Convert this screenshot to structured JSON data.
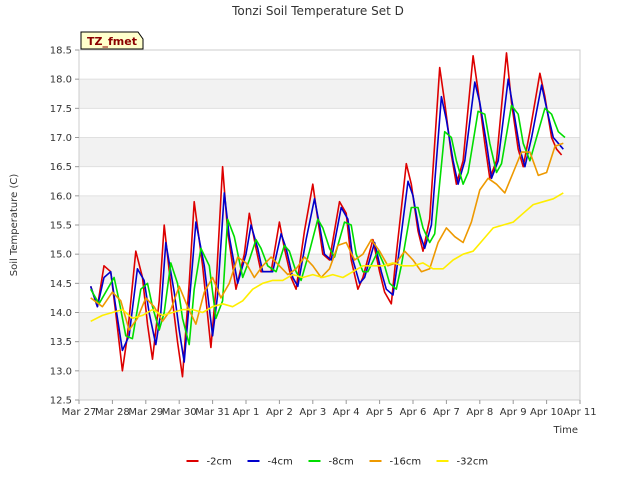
{
  "chart_data": {
    "type": "line",
    "title": "Tonzi Soil Temperature Set D",
    "xlabel": "Time",
    "ylabel": "Soil Temperature (C)",
    "badge": "TZ_fmet",
    "xlim": [
      0,
      15
    ],
    "ylim": [
      12.5,
      18.5
    ],
    "x_tick_values": [
      0,
      1,
      2,
      3,
      4,
      5,
      6,
      7,
      8,
      9,
      10,
      11,
      12,
      13,
      14,
      15
    ],
    "x_tick_labels": [
      "Mar 27",
      "Mar 28",
      "Mar 29",
      "Mar 30",
      "Mar 31",
      "Apr 1",
      "Apr 2",
      "Apr 3",
      "Apr 4",
      "Apr 5",
      "Apr 6",
      "Apr 7",
      "Apr 8",
      "Apr 9",
      "Apr 10",
      "Apr 11"
    ],
    "y_ticks": [
      12.5,
      13.0,
      13.5,
      14.0,
      14.5,
      15.0,
      15.5,
      16.0,
      16.5,
      17.0,
      17.5,
      18.0,
      18.5
    ],
    "y_tick_labels": [
      "12.5",
      "13.0",
      "13.5",
      "14.0",
      "14.5",
      "15.0",
      "15.5",
      "16.0",
      "16.5",
      "17.0",
      "17.5",
      "18.0",
      "18.5"
    ],
    "grid": "horizontal bands",
    "legend_position": "bottom",
    "series": [
      {
        "name": "-2cm",
        "color": "#dd0000",
        "x": [
          0.35,
          0.55,
          0.75,
          0.95,
          1.1,
          1.3,
          1.45,
          1.7,
          1.9,
          2.05,
          2.2,
          2.4,
          2.55,
          2.8,
          2.95,
          3.1,
          3.3,
          3.45,
          3.7,
          3.95,
          4.1,
          4.3,
          4.45,
          4.7,
          4.95,
          5.1,
          5.3,
          5.45,
          5.75,
          6.0,
          6.15,
          6.35,
          6.5,
          6.75,
          7.0,
          7.15,
          7.3,
          7.5,
          7.8,
          8.0,
          8.15,
          8.35,
          8.5,
          8.8,
          9.0,
          9.15,
          9.35,
          9.5,
          9.8,
          9.95,
          10.15,
          10.3,
          10.5,
          10.8,
          10.95,
          11.15,
          11.3,
          11.5,
          11.8,
          11.95,
          12.15,
          12.3,
          12.5,
          12.8,
          12.95,
          13.15,
          13.3,
          13.5,
          13.8,
          13.95,
          14.15,
          14.3,
          14.45
        ],
        "y": [
          14.45,
          14.1,
          14.8,
          14.7,
          14.0,
          13.0,
          13.6,
          15.05,
          14.6,
          13.8,
          13.2,
          14.2,
          15.5,
          14.2,
          13.5,
          12.9,
          14.5,
          15.9,
          14.8,
          13.4,
          14.4,
          16.5,
          15.4,
          14.4,
          15.0,
          15.7,
          15.1,
          14.7,
          14.7,
          15.55,
          15.1,
          14.6,
          14.4,
          15.4,
          16.2,
          15.6,
          15.0,
          14.9,
          15.9,
          15.7,
          14.9,
          14.4,
          14.6,
          15.25,
          14.7,
          14.35,
          14.15,
          15.0,
          16.55,
          16.2,
          15.4,
          15.05,
          15.6,
          18.2,
          17.6,
          16.7,
          16.2,
          16.6,
          18.4,
          17.8,
          16.9,
          16.3,
          16.6,
          18.45,
          17.6,
          16.8,
          16.5,
          17.1,
          18.1,
          17.7,
          17.0,
          16.8,
          16.7
        ]
      },
      {
        "name": "-4cm",
        "color": "#0000cc",
        "x": [
          0.35,
          0.55,
          0.75,
          0.95,
          1.1,
          1.3,
          1.5,
          1.75,
          1.95,
          2.1,
          2.3,
          2.45,
          2.6,
          2.85,
          3.0,
          3.15,
          3.35,
          3.5,
          3.75,
          4.0,
          4.15,
          4.35,
          4.5,
          4.75,
          5.0,
          5.15,
          5.35,
          5.5,
          5.8,
          6.05,
          6.2,
          6.4,
          6.55,
          6.8,
          7.05,
          7.2,
          7.35,
          7.55,
          7.85,
          8.05,
          8.2,
          8.4,
          8.55,
          8.85,
          9.05,
          9.2,
          9.4,
          9.55,
          9.85,
          10.0,
          10.2,
          10.35,
          10.55,
          10.85,
          11.0,
          11.2,
          11.35,
          11.55,
          11.85,
          12.0,
          12.2,
          12.35,
          12.55,
          12.85,
          13.0,
          13.2,
          13.35,
          13.55,
          13.85,
          14.0,
          14.2,
          14.35,
          14.5
        ],
        "y": [
          14.45,
          14.1,
          14.6,
          14.7,
          14.1,
          13.35,
          13.6,
          14.75,
          14.55,
          14.0,
          13.45,
          14.0,
          15.2,
          14.35,
          13.7,
          13.15,
          14.5,
          15.55,
          14.8,
          13.6,
          14.3,
          16.05,
          15.3,
          14.5,
          15.0,
          15.5,
          15.1,
          14.7,
          14.7,
          15.35,
          15.1,
          14.6,
          14.45,
          15.25,
          15.95,
          15.5,
          15.0,
          14.9,
          15.8,
          15.6,
          14.9,
          14.5,
          14.6,
          15.2,
          14.7,
          14.4,
          14.3,
          14.9,
          16.25,
          16.0,
          15.35,
          15.1,
          15.5,
          17.7,
          17.3,
          16.6,
          16.2,
          16.6,
          17.95,
          17.6,
          16.9,
          16.3,
          16.6,
          18.0,
          17.5,
          16.8,
          16.5,
          17.0,
          17.9,
          17.5,
          17.0,
          16.9,
          16.8
        ]
      },
      {
        "name": "-8cm",
        "color": "#00dd00",
        "x": [
          0.35,
          0.6,
          0.85,
          1.05,
          1.2,
          1.4,
          1.6,
          1.85,
          2.05,
          2.2,
          2.4,
          2.55,
          2.75,
          2.95,
          3.1,
          3.3,
          3.45,
          3.65,
          3.9,
          4.1,
          4.3,
          4.45,
          4.65,
          4.9,
          5.1,
          5.3,
          5.45,
          5.65,
          5.9,
          6.15,
          6.3,
          6.5,
          6.65,
          6.9,
          7.15,
          7.3,
          7.5,
          7.65,
          7.95,
          8.15,
          8.3,
          8.5,
          8.65,
          8.95,
          9.15,
          9.3,
          9.5,
          9.65,
          9.95,
          10.15,
          10.3,
          10.5,
          10.65,
          10.95,
          11.15,
          11.3,
          11.5,
          11.65,
          11.95,
          12.15,
          12.3,
          12.5,
          12.65,
          12.95,
          13.15,
          13.3,
          13.5,
          13.65,
          13.95,
          14.15,
          14.35,
          14.55
        ],
        "y": [
          14.4,
          14.15,
          14.4,
          14.6,
          14.2,
          13.6,
          13.55,
          14.4,
          14.5,
          14.1,
          13.7,
          14.0,
          14.85,
          14.5,
          13.9,
          13.45,
          14.4,
          15.1,
          14.8,
          13.9,
          14.2,
          15.6,
          15.3,
          14.6,
          14.9,
          15.25,
          15.1,
          14.8,
          14.7,
          15.15,
          15.05,
          14.7,
          14.55,
          15.05,
          15.6,
          15.45,
          15.1,
          14.95,
          15.55,
          15.5,
          15.0,
          14.7,
          14.7,
          15.05,
          14.8,
          14.5,
          14.4,
          14.8,
          15.8,
          15.8,
          15.45,
          15.2,
          15.35,
          17.1,
          17.0,
          16.6,
          16.2,
          16.4,
          17.45,
          17.4,
          16.9,
          16.4,
          16.55,
          17.55,
          17.4,
          16.9,
          16.6,
          16.9,
          17.5,
          17.4,
          17.1,
          17.0
        ]
      },
      {
        "name": "-16cm",
        "color": "#ee9900",
        "x": [
          0.35,
          0.7,
          1.0,
          1.25,
          1.5,
          1.75,
          2.0,
          2.25,
          2.5,
          2.75,
          3.0,
          3.25,
          3.5,
          3.75,
          4.0,
          4.25,
          4.5,
          4.75,
          5.0,
          5.25,
          5.5,
          5.75,
          6.0,
          6.25,
          6.5,
          6.75,
          7.0,
          7.25,
          7.5,
          7.75,
          8.0,
          8.25,
          8.5,
          8.75,
          9.0,
          9.25,
          9.5,
          9.75,
          10.0,
          10.25,
          10.5,
          10.75,
          11.0,
          11.25,
          11.5,
          11.75,
          12.0,
          12.25,
          12.5,
          12.75,
          13.0,
          13.25,
          13.5,
          13.75,
          14.0,
          14.25,
          14.5
        ],
        "y": [
          14.25,
          14.1,
          14.35,
          14.2,
          13.7,
          13.9,
          14.25,
          14.1,
          13.85,
          14.05,
          14.45,
          14.1,
          13.8,
          14.35,
          14.6,
          14.25,
          14.5,
          14.95,
          14.85,
          14.6,
          14.8,
          14.95,
          14.8,
          14.65,
          14.75,
          14.95,
          14.8,
          14.6,
          14.75,
          15.15,
          15.2,
          14.9,
          15.0,
          15.25,
          15.05,
          14.8,
          14.85,
          15.05,
          14.9,
          14.7,
          14.75,
          15.2,
          15.45,
          15.3,
          15.2,
          15.55,
          16.1,
          16.3,
          16.2,
          16.05,
          16.4,
          16.75,
          16.75,
          16.35,
          16.4,
          16.85,
          16.9
        ]
      },
      {
        "name": "-32cm",
        "color": "#ffee00",
        "x": [
          0.35,
          0.7,
          1.0,
          1.3,
          1.6,
          1.9,
          2.2,
          2.5,
          2.8,
          3.1,
          3.4,
          3.7,
          4.0,
          4.3,
          4.6,
          4.9,
          5.2,
          5.5,
          5.8,
          6.1,
          6.4,
          6.7,
          7.0,
          7.3,
          7.6,
          7.9,
          8.2,
          8.5,
          8.8,
          9.1,
          9.4,
          9.7,
          10.0,
          10.3,
          10.6,
          10.9,
          11.2,
          11.5,
          11.8,
          12.1,
          12.4,
          12.7,
          13.0,
          13.3,
          13.6,
          13.9,
          14.2,
          14.5
        ],
        "y": [
          13.85,
          13.95,
          14.0,
          14.05,
          13.9,
          13.95,
          14.05,
          13.95,
          14.0,
          14.05,
          14.05,
          14.0,
          14.1,
          14.15,
          14.1,
          14.2,
          14.4,
          14.5,
          14.55,
          14.55,
          14.65,
          14.6,
          14.65,
          14.6,
          14.65,
          14.6,
          14.7,
          14.8,
          14.8,
          14.8,
          14.85,
          14.8,
          14.8,
          14.85,
          14.75,
          14.75,
          14.9,
          15.0,
          15.05,
          15.25,
          15.45,
          15.5,
          15.55,
          15.7,
          15.85,
          15.9,
          15.95,
          16.05
        ]
      }
    ]
  }
}
